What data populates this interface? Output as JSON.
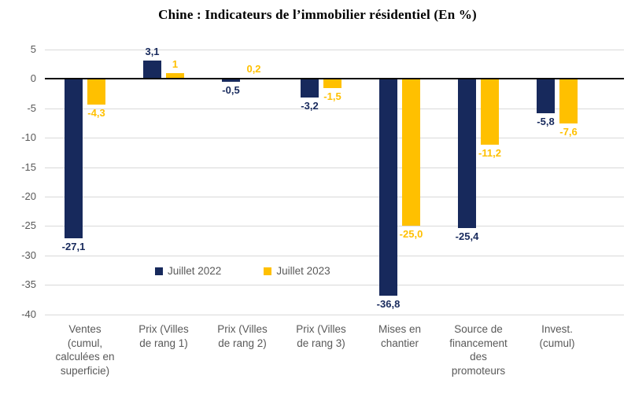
{
  "chart_data": {
    "type": "bar",
    "title": "Chine : Indicateurs de l’immobilier résidentiel (En %)",
    "categories": [
      "Ventes\n(cumul,\ncalculées en\nsuperficie)",
      "Prix (Villes\nde rang 1)",
      "Prix (Villes\nde rang 2)",
      "Prix (Villes\nde rang 3)",
      "Mises en\nchantier",
      "Source de\nfinancement\ndes\npromoteurs",
      "Invest.\n(cumul)"
    ],
    "series": [
      {
        "name": "Juillet 2022",
        "color": "#17295c",
        "values": [
          -27.1,
          3.1,
          -0.5,
          -3.2,
          -36.8,
          -25.4,
          -5.8
        ],
        "value_labels": [
          "-27,1",
          "3,1",
          "-0,5",
          "-3,2",
          "-36,8",
          "-25,4",
          "-5,8"
        ]
      },
      {
        "name": "Juillet 2023",
        "color": "#ffc000",
        "values": [
          -4.3,
          1.0,
          0.2,
          -1.5,
          -25.0,
          -11.2,
          -7.6
        ],
        "value_labels": [
          "-4,3",
          "1",
          "0,2",
          "-1,5",
          "-25,0",
          "-11,2",
          "-7,6"
        ]
      }
    ],
    "y_ticks": [
      5,
      0,
      -5,
      -10,
      -15,
      -20,
      -25,
      -30,
      -35,
      -40
    ],
    "y_tick_labels": [
      "5",
      "0",
      "-5",
      "-10",
      "-15",
      "-20",
      "-25",
      "-30",
      "-35",
      "-40"
    ],
    "ylim": [
      -40,
      5
    ],
    "grid": true,
    "legend_position": "inside-bottom-left",
    "axis_text_color": "#595959",
    "gridline_color": "#d9d9d9",
    "zero_line_color": "#0a0a0a"
  }
}
